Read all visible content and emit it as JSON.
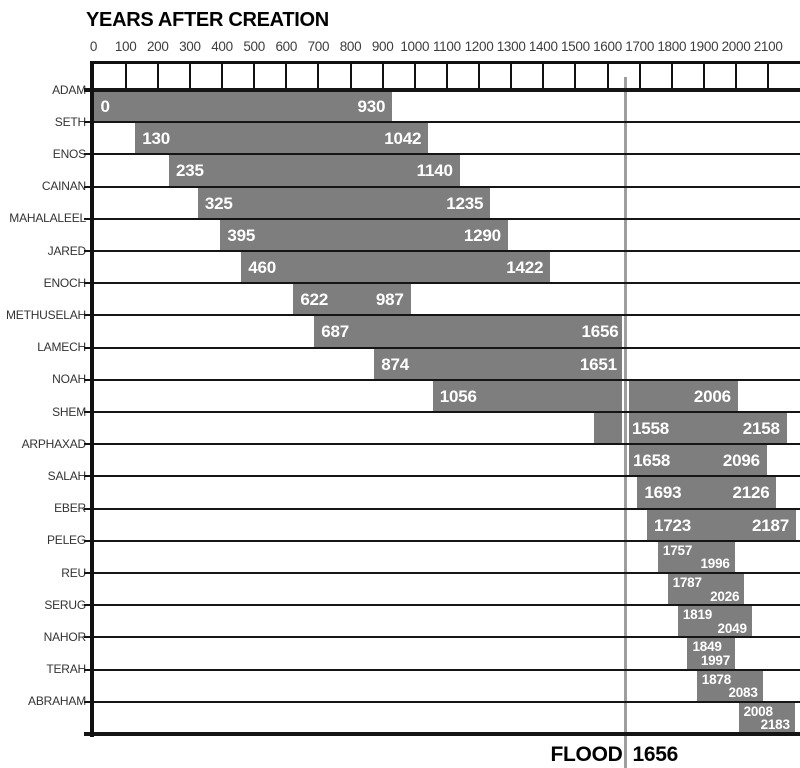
{
  "title": "YEARS AFTER CREATION",
  "flood_caption": {
    "label": "FLOOD",
    "year_label": "1656"
  },
  "chart_data": {
    "type": "bar",
    "variant": "horizontal-lifespan-range",
    "title": "YEARS AFTER CREATION",
    "xlabel": "YEARS AFTER CREATION",
    "ylabel": "",
    "xlim": [
      0,
      2200
    ],
    "x_ticks": [
      0,
      100,
      200,
      300,
      400,
      500,
      600,
      700,
      800,
      900,
      1000,
      1100,
      1200,
      1300,
      1400,
      1500,
      1600,
      1700,
      1800,
      1900,
      2000,
      2100
    ],
    "grid": "top-band-ticks-and-row-lines",
    "legend": "none",
    "flood": {
      "label": "FLOOD",
      "year": 1656,
      "year_label": "1656"
    },
    "colors": {
      "bar": "#7e7e7e",
      "bar_value_text": "#ffffff",
      "flood_line": "#9e9e9e",
      "axis_line": "#111111",
      "row_label_text": "#333333",
      "tick_label_text": "#3d3d3d"
    },
    "people": [
      {
        "name": "ADAM",
        "born": 0,
        "died": 930
      },
      {
        "name": "SETH",
        "born": 130,
        "died": 1042
      },
      {
        "name": "ENOS",
        "born": 235,
        "died": 1140
      },
      {
        "name": "CAINAN",
        "born": 325,
        "died": 1235
      },
      {
        "name": "MAHALALEEL",
        "born": 395,
        "died": 1290
      },
      {
        "name": "JARED",
        "born": 460,
        "died": 1422
      },
      {
        "name": "ENOCH",
        "born": 622,
        "died": 987
      },
      {
        "name": "METHUSELAH",
        "born": 687,
        "died": 1656
      },
      {
        "name": "LAMECH",
        "born": 874,
        "died": 1651
      },
      {
        "name": "NOAH",
        "born": 1056,
        "died": 2006
      },
      {
        "name": "SHEM",
        "born": 1558,
        "died": 2158
      },
      {
        "name": "ARPHAXAD",
        "born": 1658,
        "died": 2096
      },
      {
        "name": "SALAH",
        "born": 1693,
        "died": 2126
      },
      {
        "name": "EBER",
        "born": 1723,
        "died": 2187
      },
      {
        "name": "PELEG",
        "born": 1757,
        "died": 1996
      },
      {
        "name": "REU",
        "born": 1787,
        "died": 2026
      },
      {
        "name": "SERUG",
        "born": 1819,
        "died": 2049
      },
      {
        "name": "NAHOR",
        "born": 1849,
        "died": 1997
      },
      {
        "name": "TERAH",
        "born": 1878,
        "died": 2083
      },
      {
        "name": "ABRAHAM",
        "born": 2008,
        "died": 2183
      }
    ]
  }
}
